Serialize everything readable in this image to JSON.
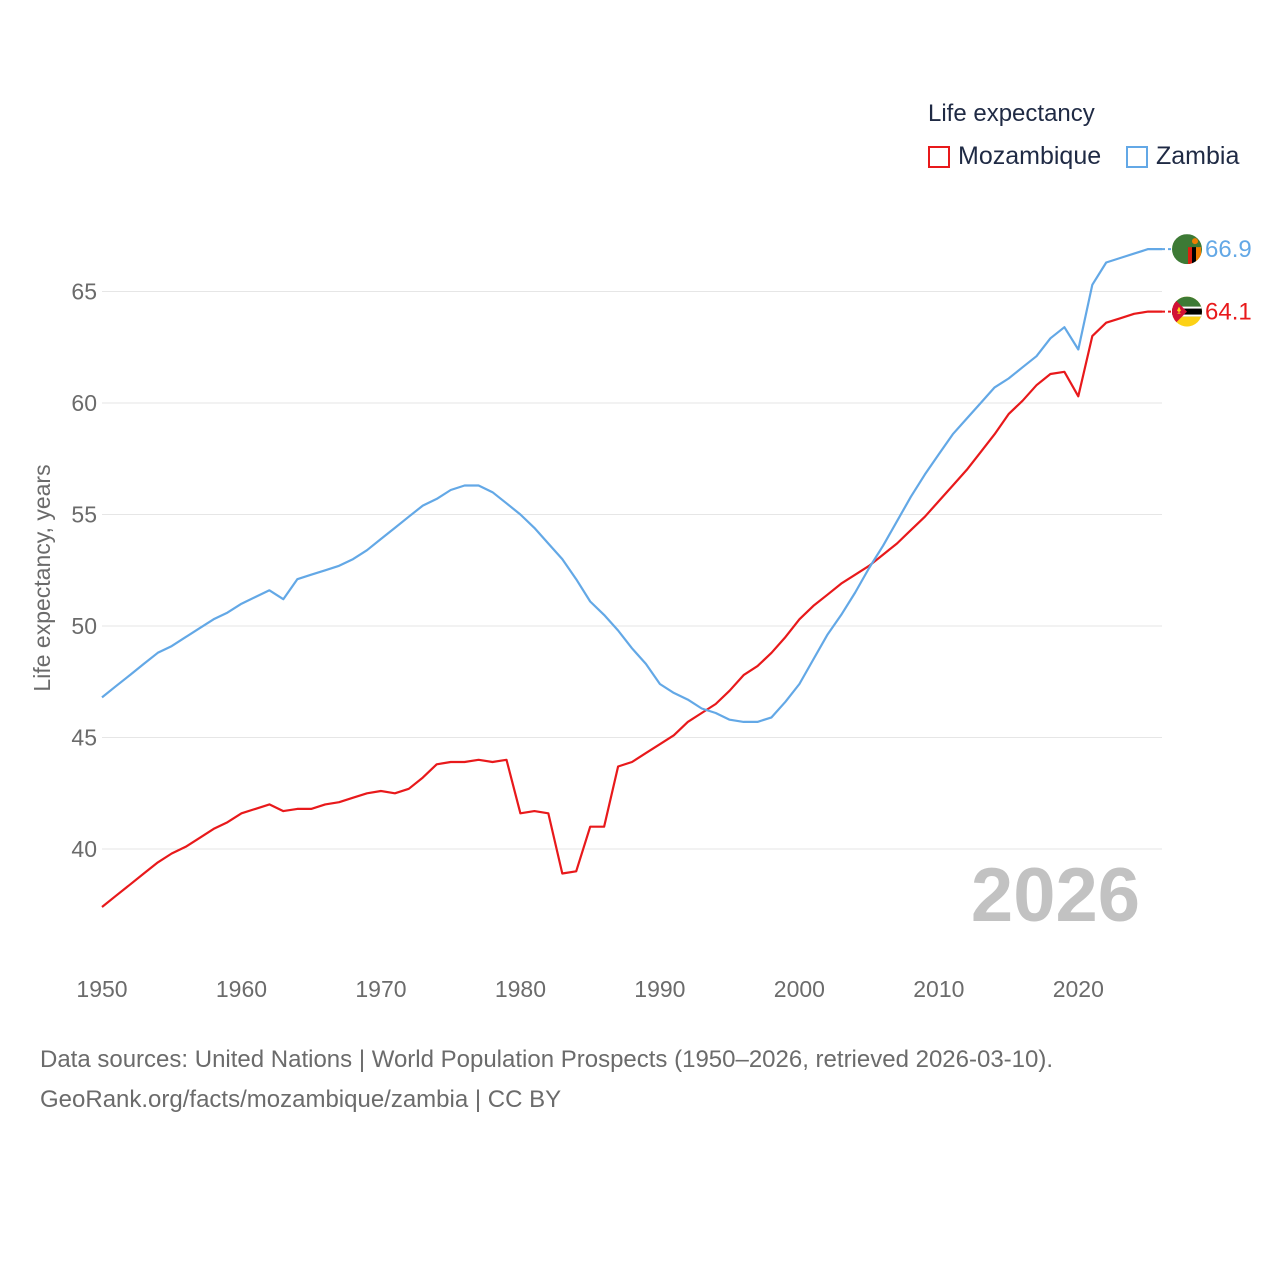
{
  "legend": {
    "title": "Life expectancy",
    "items": [
      {
        "label": "Mozambique",
        "color": "#e8191b"
      },
      {
        "label": "Zambia",
        "color": "#63a8e6"
      }
    ]
  },
  "year_label": "2026",
  "source": {
    "line1": "Data sources: United Nations | World Population Prospects (1950–2026, retrieved 2026-03-10).",
    "line2": "GeoRank.org/facts/mozambique/zambia | CC BY"
  },
  "chart_data": {
    "type": "line",
    "ylabel": "Life expectancy, years",
    "xlabel": "",
    "xlim": [
      1950,
      2026
    ],
    "ylim": [
      36,
      68
    ],
    "xticks": [
      1950,
      1960,
      1970,
      1980,
      1990,
      2000,
      2010,
      2020
    ],
    "yticks": [
      40,
      45,
      50,
      55,
      60,
      65
    ],
    "grid": true,
    "x": [
      1950,
      1951,
      1952,
      1953,
      1954,
      1955,
      1956,
      1957,
      1958,
      1959,
      1960,
      1961,
      1962,
      1963,
      1964,
      1965,
      1966,
      1967,
      1968,
      1969,
      1970,
      1971,
      1972,
      1973,
      1974,
      1975,
      1976,
      1977,
      1978,
      1979,
      1980,
      1981,
      1982,
      1983,
      1984,
      1985,
      1986,
      1987,
      1988,
      1989,
      1990,
      1991,
      1992,
      1993,
      1994,
      1995,
      1996,
      1997,
      1998,
      1999,
      2000,
      2001,
      2002,
      2003,
      2004,
      2005,
      2006,
      2007,
      2008,
      2009,
      2010,
      2011,
      2012,
      2013,
      2014,
      2015,
      2016,
      2017,
      2018,
      2019,
      2020,
      2021,
      2022,
      2023,
      2024,
      2025,
      2026
    ],
    "series": [
      {
        "name": "Mozambique",
        "color": "#e8191b",
        "end_label": "64.1",
        "values": [
          37.4,
          37.9,
          38.4,
          38.9,
          39.4,
          39.8,
          40.1,
          40.5,
          40.9,
          41.2,
          41.6,
          41.8,
          42.0,
          41.7,
          41.8,
          41.8,
          42.0,
          42.1,
          42.3,
          42.5,
          42.6,
          42.5,
          42.7,
          43.2,
          43.8,
          43.9,
          43.9,
          44.0,
          43.9,
          44.0,
          41.6,
          41.7,
          41.6,
          38.9,
          39.0,
          41.0,
          41.0,
          43.7,
          43.9,
          44.3,
          44.7,
          45.1,
          45.7,
          46.1,
          46.5,
          47.1,
          47.8,
          48.2,
          48.8,
          49.5,
          50.3,
          50.9,
          51.4,
          51.9,
          52.3,
          52.7,
          53.2,
          53.7,
          54.3,
          54.9,
          55.6,
          56.3,
          57.0,
          57.8,
          58.6,
          59.5,
          60.1,
          60.8,
          61.3,
          61.4,
          60.3,
          63.0,
          63.6,
          63.8,
          64.0,
          64.1,
          64.1
        ]
      },
      {
        "name": "Zambia",
        "color": "#63a8e6",
        "end_label": "66.9",
        "values": [
          46.8,
          47.3,
          47.8,
          48.3,
          48.8,
          49.1,
          49.5,
          49.9,
          50.3,
          50.6,
          51.0,
          51.3,
          51.6,
          51.2,
          52.1,
          52.3,
          52.5,
          52.7,
          53.0,
          53.4,
          53.9,
          54.4,
          54.9,
          55.4,
          55.7,
          56.1,
          56.3,
          56.3,
          56.0,
          55.5,
          55.0,
          54.4,
          53.7,
          53.0,
          52.1,
          51.1,
          50.5,
          49.8,
          49.0,
          48.3,
          47.4,
          47.0,
          46.7,
          46.3,
          46.1,
          45.8,
          45.7,
          45.7,
          45.9,
          46.6,
          47.4,
          48.5,
          49.6,
          50.5,
          51.5,
          52.6,
          53.6,
          54.7,
          55.8,
          56.8,
          57.7,
          58.6,
          59.3,
          60.0,
          60.7,
          61.1,
          61.6,
          62.1,
          62.9,
          63.4,
          62.4,
          65.3,
          66.3,
          66.5,
          66.7,
          66.9,
          66.9
        ]
      }
    ]
  }
}
